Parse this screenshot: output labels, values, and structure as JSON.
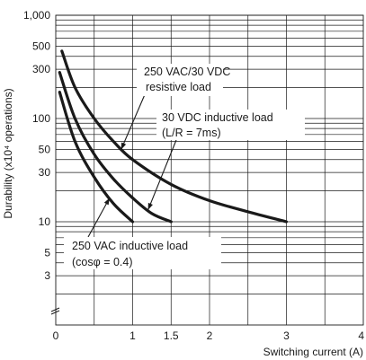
{
  "chart_data": {
    "type": "line",
    "ylabel": "Durability (x10⁴ operations)",
    "xlabel": "Switching current (A)",
    "x_scale": "linear",
    "y_scale": "log",
    "xlim": [
      0,
      4
    ],
    "ylim": [
      1,
      1000
    ],
    "grid": true,
    "x_ticks": [
      {
        "value": 1,
        "label": "1"
      },
      {
        "value": 1.5,
        "label": "1.5"
      },
      {
        "value": 2,
        "label": "2"
      },
      {
        "value": 3,
        "label": "3"
      },
      {
        "value": 4,
        "label": "4"
      }
    ],
    "x_origin_label": "0",
    "y_ticks": [
      {
        "value": 1000,
        "label": "1,000"
      },
      {
        "value": 500,
        "label": "500"
      },
      {
        "value": 300,
        "label": "300"
      },
      {
        "value": 100,
        "label": "100"
      },
      {
        "value": 50,
        "label": "50"
      },
      {
        "value": 30,
        "label": "30"
      },
      {
        "value": 10,
        "label": "10"
      },
      {
        "value": 5,
        "label": "5"
      },
      {
        "value": 3,
        "label": "3"
      }
    ],
    "series": [
      {
        "name": "250 VAC/30 VDC resistive load",
        "label_lines": [
          "250 VAC/30 VDC",
          "resistive load"
        ],
        "x": [
          0.08,
          0.25,
          0.5,
          0.75,
          1.0,
          1.5,
          2.0,
          2.5,
          3.0
        ],
        "y": [
          450,
          200,
          100,
          60,
          40,
          23,
          16,
          12.5,
          10
        ]
      },
      {
        "name": "30 VDC inductive load (L/R = 7ms)",
        "label_lines": [
          "30 VDC inductive load",
          "(L/R = 7ms)"
        ],
        "x": [
          0.05,
          0.25,
          0.5,
          0.75,
          1.0,
          1.25,
          1.5
        ],
        "y": [
          280,
          100,
          45,
          26,
          17,
          12,
          10
        ]
      },
      {
        "name": "250 VAC inductive load (cosφ = 0.4)",
        "label_lines": [
          "250 VAC inductive load",
          "(cosφ = 0.4)"
        ],
        "x": [
          0.05,
          0.25,
          0.5,
          0.75,
          1.0
        ],
        "y": [
          180,
          60,
          27,
          15,
          10
        ]
      }
    ]
  }
}
